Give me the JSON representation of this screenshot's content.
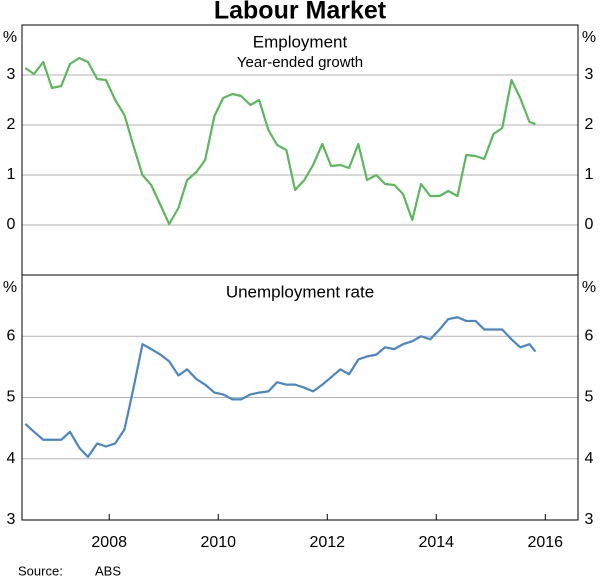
{
  "title": "Labour Market",
  "source_label": "Source:",
  "source": "ABS",
  "chart_data": [
    {
      "type": "line",
      "title": "Employment",
      "subtitle": "Year-ended growth",
      "unit": "%",
      "color": "#5cb85c",
      "x": [
        2006.46,
        2006.62,
        2006.79,
        2006.95,
        2007.12,
        2007.28,
        2007.45,
        2007.61,
        2007.78,
        2007.94,
        2008.11,
        2008.28,
        2008.44,
        2008.61,
        2008.77,
        2008.94,
        2009.1,
        2009.27,
        2009.43,
        2009.6,
        2009.76,
        2009.93,
        2010.09,
        2010.26,
        2010.42,
        2010.59,
        2010.75,
        2010.92,
        2011.08,
        2011.25,
        2011.41,
        2011.58,
        2011.74,
        2011.91,
        2012.07,
        2012.24,
        2012.4,
        2012.57,
        2012.73,
        2012.9,
        2013.06,
        2013.23,
        2013.39,
        2013.56,
        2013.72,
        2013.89,
        2014.06,
        2014.22,
        2014.39,
        2014.55,
        2014.72,
        2014.88,
        2015.05,
        2015.21,
        2015.38,
        2015.54,
        2015.71,
        2015.82
      ],
      "values": [
        3.14,
        3.02,
        3.26,
        2.74,
        2.78,
        3.22,
        3.34,
        3.26,
        2.92,
        2.9,
        2.5,
        2.2,
        1.6,
        1.0,
        0.8,
        0.4,
        0.02,
        0.34,
        0.9,
        1.06,
        1.3,
        2.18,
        2.54,
        2.62,
        2.58,
        2.4,
        2.5,
        1.9,
        1.6,
        1.5,
        0.7,
        0.9,
        1.2,
        1.62,
        1.18,
        1.2,
        1.14,
        1.62,
        0.9,
        1.0,
        0.82,
        0.8,
        0.62,
        0.1,
        0.82,
        0.58,
        0.58,
        0.68,
        0.58,
        1.4,
        1.38,
        1.32,
        1.82,
        1.94,
        2.9,
        2.54,
        2.06,
        2.02
      ],
      "xlim": [
        2006.4,
        2016.6
      ],
      "ylim": [
        -1,
        4
      ],
      "yticks": [
        0,
        1,
        2,
        3
      ],
      "grid": true
    },
    {
      "type": "line",
      "title": "Unemployment rate",
      "unit": "%",
      "color": "#4a86c5",
      "x": [
        2006.46,
        2006.62,
        2006.79,
        2006.95,
        2007.12,
        2007.28,
        2007.45,
        2007.61,
        2007.78,
        2007.94,
        2008.11,
        2008.28,
        2008.44,
        2008.61,
        2008.77,
        2008.94,
        2009.1,
        2009.27,
        2009.43,
        2009.6,
        2009.76,
        2009.93,
        2010.09,
        2010.26,
        2010.42,
        2010.59,
        2010.75,
        2010.92,
        2011.08,
        2011.25,
        2011.41,
        2011.58,
        2011.74,
        2011.91,
        2012.07,
        2012.24,
        2012.4,
        2012.57,
        2012.73,
        2012.9,
        2013.06,
        2013.23,
        2013.39,
        2013.56,
        2013.72,
        2013.89,
        2014.06,
        2014.22,
        2014.39,
        2014.55,
        2014.72,
        2014.88,
        2015.05,
        2015.21,
        2015.38,
        2015.54,
        2015.71,
        2015.82
      ],
      "values": [
        4.57,
        4.44,
        4.31,
        4.31,
        4.31,
        4.44,
        4.18,
        4.03,
        4.25,
        4.2,
        4.25,
        4.48,
        5.13,
        5.87,
        5.79,
        5.7,
        5.59,
        5.36,
        5.46,
        5.3,
        5.21,
        5.08,
        5.05,
        4.97,
        4.97,
        5.05,
        5.08,
        5.1,
        5.25,
        5.21,
        5.21,
        5.16,
        5.1,
        5.21,
        5.33,
        5.46,
        5.38,
        5.62,
        5.67,
        5.7,
        5.82,
        5.79,
        5.87,
        5.92,
        6.0,
        5.95,
        6.11,
        6.28,
        6.31,
        6.25,
        6.25,
        6.11,
        6.11,
        6.11,
        5.95,
        5.82,
        5.87,
        5.75
      ],
      "xlim": [
        2006.4,
        2016.6
      ],
      "xticks": [
        2008,
        2010,
        2012,
        2014,
        2016
      ],
      "ylim": [
        3,
        7
      ],
      "yticks": [
        3,
        4,
        5,
        6
      ],
      "grid": true
    }
  ]
}
